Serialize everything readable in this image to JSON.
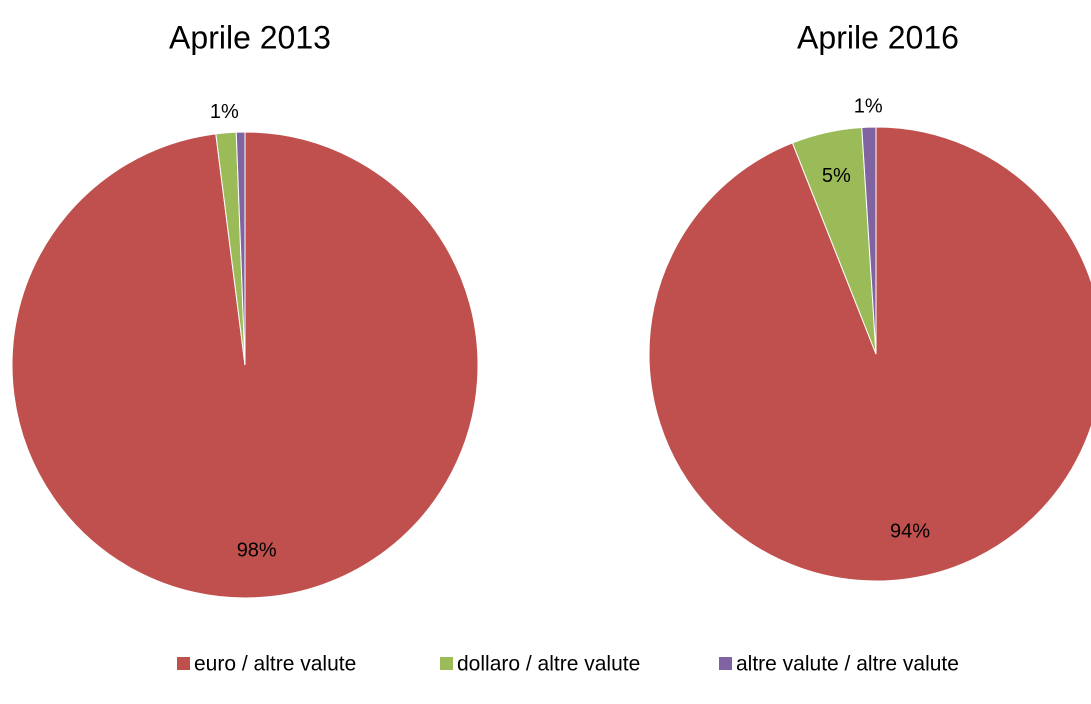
{
  "chart_data": [
    {
      "type": "pie",
      "title": "Aprile 2013",
      "categories": [
        "euro / altre valute",
        "dollaro / altre valute",
        "altre valute / altre valute"
      ],
      "values": [
        98,
        1.4,
        0.6
      ],
      "value_labels": [
        "98%",
        "1%",
        null
      ],
      "colors": [
        "#c0504d",
        "#9bbb59",
        "#8064a2"
      ]
    },
    {
      "type": "pie",
      "title": "Aprile 2016",
      "categories": [
        "euro / altre valute",
        "dollaro / altre valute",
        "altre valute / altre valute"
      ],
      "values": [
        94,
        5,
        1
      ],
      "value_labels": [
        "94%",
        "5%",
        "1%"
      ],
      "colors": [
        "#c0504d",
        "#9bbb59",
        "#8064a2"
      ]
    }
  ]
}
